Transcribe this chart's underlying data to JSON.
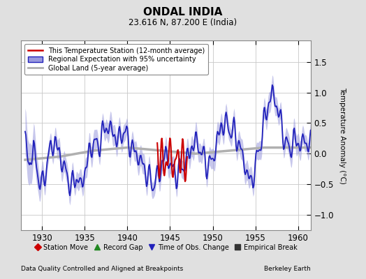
{
  "title": "ONDAL INDIA",
  "subtitle": "23.616 N, 87.200 E (India)",
  "ylabel": "Temperature Anomaly (°C)",
  "xlabel_left": "Data Quality Controlled and Aligned at Breakpoints",
  "xlabel_right": "Berkeley Earth",
  "xlim": [
    1927.5,
    1961.5
  ],
  "ylim": [
    -1.25,
    1.85
  ],
  "yticks": [
    -1.0,
    -0.5,
    0.0,
    0.5,
    1.0,
    1.5
  ],
  "xticks": [
    1930,
    1935,
    1940,
    1945,
    1950,
    1955,
    1960
  ],
  "bg_color": "#e0e0e0",
  "plot_bg_color": "#ffffff",
  "grid_color": "#c8c8c8",
  "regional_color": "#2222bb",
  "regional_fill_color": "#9999dd",
  "station_color": "#cc0000",
  "global_color": "#b0b0b0",
  "legend_items": [
    {
      "label": "This Temperature Station (12-month average)",
      "color": "#cc0000",
      "lw": 1.5
    },
    {
      "label": "Regional Expectation with 95% uncertainty",
      "color": "#2222bb",
      "lw": 1.5
    },
    {
      "label": "Global Land (5-year average)",
      "color": "#b0b0b0",
      "lw": 2.0
    }
  ],
  "bottom_legend": [
    {
      "label": "Station Move",
      "color": "#cc0000",
      "marker": "D"
    },
    {
      "label": "Record Gap",
      "color": "#228822",
      "marker": "^"
    },
    {
      "label": "Time of Obs. Change",
      "color": "#2222bb",
      "marker": "v"
    },
    {
      "label": "Empirical Break",
      "color": "#333333",
      "marker": "s"
    }
  ]
}
